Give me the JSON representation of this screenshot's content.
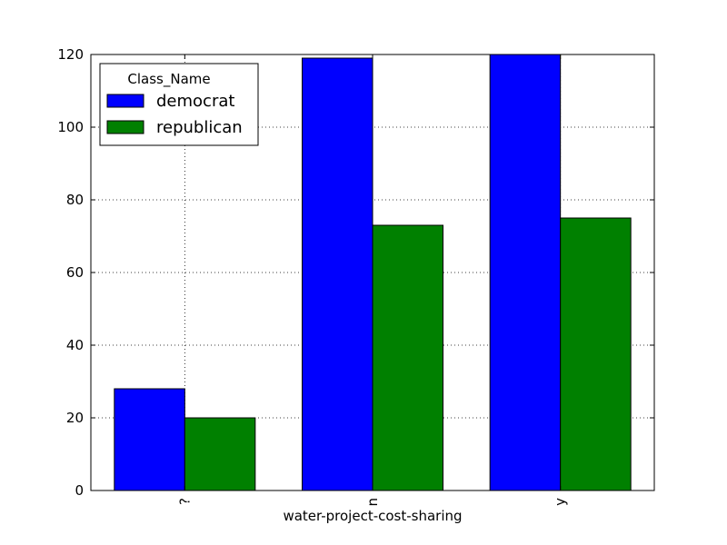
{
  "chart_data": {
    "type": "bar",
    "title": "",
    "xlabel": "water-project-cost-sharing",
    "ylabel": "",
    "categories": [
      "?",
      "n",
      "y"
    ],
    "series": [
      {
        "name": "democrat",
        "values": [
          28,
          119,
          120
        ],
        "color": "#0000ff"
      },
      {
        "name": "republican",
        "values": [
          20,
          73,
          75
        ],
        "color": "#008000"
      }
    ],
    "ylim": [
      0,
      120
    ],
    "yticks": [
      0,
      20,
      40,
      60,
      80,
      100,
      120
    ],
    "grid": true,
    "legend": {
      "title": "Class_Name",
      "placement": "top-left"
    },
    "xtick_rotation": 90
  }
}
